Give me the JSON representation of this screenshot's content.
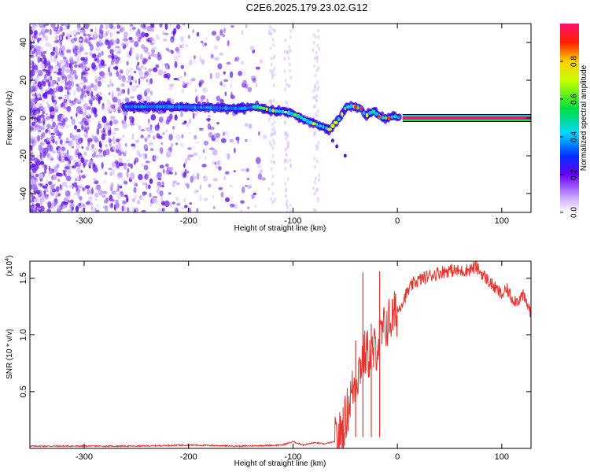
{
  "figure": {
    "title": "C2E6.2025.179.23.02.G12"
  },
  "chart_data": [
    {
      "type": "heatmap",
      "name": "spectrogram",
      "xlabel": "Height of straight line (km)",
      "ylabel": "Frequency (Hz)",
      "xlim": [
        -352,
        128
      ],
      "ylim": [
        -50,
        50
      ],
      "xticks": [
        -300,
        -200,
        -100,
        0,
        100
      ],
      "yticks": [
        -40,
        -20,
        0,
        20,
        40
      ],
      "ridge": {
        "description_x": [
          -250,
          -220,
          -180,
          -150,
          -135,
          -120,
          -105,
          -95,
          -85,
          -75,
          -65,
          -55,
          -50,
          -45,
          -40,
          -35,
          -30,
          -27,
          -22,
          -18,
          -13,
          -8,
          -3,
          2
        ],
        "frequency_hz": [
          6,
          6,
          5.5,
          5,
          6,
          4,
          3,
          1,
          -2,
          -4,
          -6,
          0,
          5,
          6.5,
          6,
          5,
          1,
          2.5,
          3.5,
          1,
          0,
          0,
          1,
          0
        ],
        "tone_frequency_hz": 0,
        "tone_start_x": 5
      },
      "colorbar": {
        "label": "Normalized spectral amplitude",
        "ticks": [
          "0.0",
          "0.2",
          "0.4",
          "0.6",
          "0.8"
        ],
        "range": [
          0,
          1
        ]
      }
    },
    {
      "type": "line",
      "name": "snr",
      "xlabel": "Height of straight line (km)",
      "ylabel": "SNR (10 * v/v)",
      "scale_label": "(x10",
      "scale_exponent": "4",
      "xlim": [
        -352,
        128
      ],
      "ylim": [
        0,
        1.65
      ],
      "xticks": [
        -300,
        -200,
        -100,
        0,
        100
      ],
      "yticks": [
        0.5,
        1.0,
        1.5
      ],
      "ytick_labels": [
        "0.5",
        "1.0",
        "1.5"
      ],
      "color": "#e8332e",
      "series": [
        {
          "x": [
            -352,
            -300,
            -250,
            -200,
            -150,
            -110,
            -100,
            -90,
            -80,
            -70,
            -60,
            -55,
            -50,
            -45,
            -40,
            -35,
            -30,
            -25,
            -20,
            -15,
            -10,
            -5,
            0,
            5,
            10,
            15,
            20,
            30,
            40,
            50,
            60,
            70,
            75,
            80,
            85,
            90,
            95,
            100,
            105,
            110,
            115,
            120,
            128
          ],
          "y": [
            0.02,
            0.02,
            0.02,
            0.03,
            0.02,
            0.03,
            0.06,
            0.03,
            0.05,
            0.04,
            0.06,
            0.12,
            0.25,
            0.45,
            0.6,
            0.75,
            0.85,
            0.8,
            0.9,
            1.0,
            1.1,
            1.15,
            1.2,
            1.3,
            1.38,
            1.45,
            1.48,
            1.52,
            1.55,
            1.57,
            1.56,
            1.58,
            1.6,
            1.55,
            1.5,
            1.45,
            1.4,
            1.35,
            1.4,
            1.32,
            1.3,
            1.35,
            1.2
          ]
        }
      ],
      "spikes": [
        {
          "x": -33,
          "y": 1.55
        },
        {
          "x": -17,
          "y": 1.56
        },
        {
          "x": -40,
          "y": 0.95
        },
        {
          "x": -25,
          "y": 1.1
        }
      ]
    }
  ]
}
